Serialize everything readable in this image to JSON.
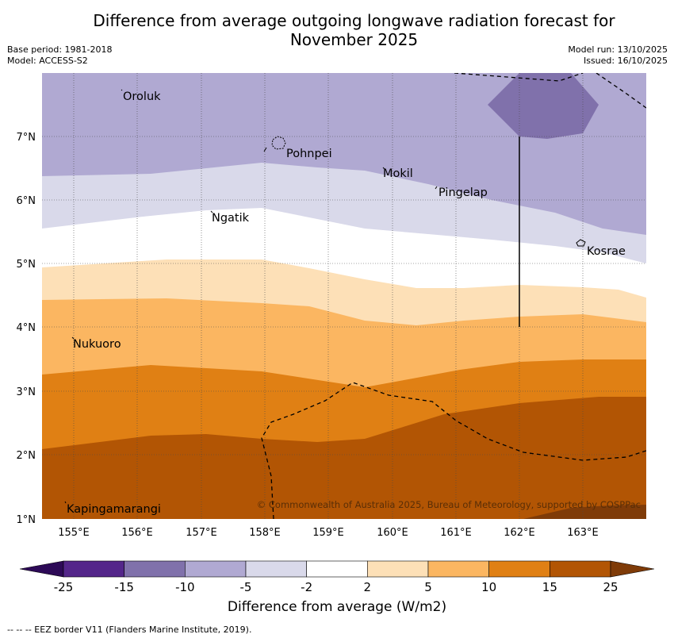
{
  "title_line1": "Difference from average outgoing longwave radiation forecast for",
  "title_line2": "November 2025",
  "meta": {
    "base_period": "Base period: 1981-2018",
    "model": "Model: ACCESS-S2",
    "model_run": "Model run: 13/10/2025",
    "issued": "Issued: 16/10/2025"
  },
  "axes": {
    "lon_labels": [
      "155°E",
      "156°E",
      "157°E",
      "158°E",
      "159°E",
      "160°E",
      "161°E",
      "162°E",
      "163°E"
    ],
    "lat_labels": [
      "1°N",
      "2°N",
      "3°N",
      "4°N",
      "5°N",
      "6°N",
      "7°N"
    ]
  },
  "places": [
    "Oroluk",
    "Pohnpei",
    "Mokil",
    "Pingelap",
    "Ngatik",
    "Kosrae",
    "Nukuoro",
    "Kapingamarangi"
  ],
  "copyright": "© Commonwealth of Australia 2025, Bureau of Meteorology, supported by COSPPac",
  "colorbar": {
    "tick_labels": [
      "-25",
      "-15",
      "-10",
      "-5",
      "-2",
      "2",
      "5",
      "10",
      "15",
      "25"
    ],
    "colors": [
      "#2d0a57",
      "#54268a",
      "#8071ab",
      "#b0a9d2",
      "#d9d9ea",
      "#ffffff",
      "#fde0b7",
      "#fbb661",
      "#e08014",
      "#b25504",
      "#7f3b08"
    ],
    "title": "Difference from average (W/m2)"
  },
  "eez_note": "--  --  -- EEZ border V11 (Flanders Marine Institute, 2019)."
}
